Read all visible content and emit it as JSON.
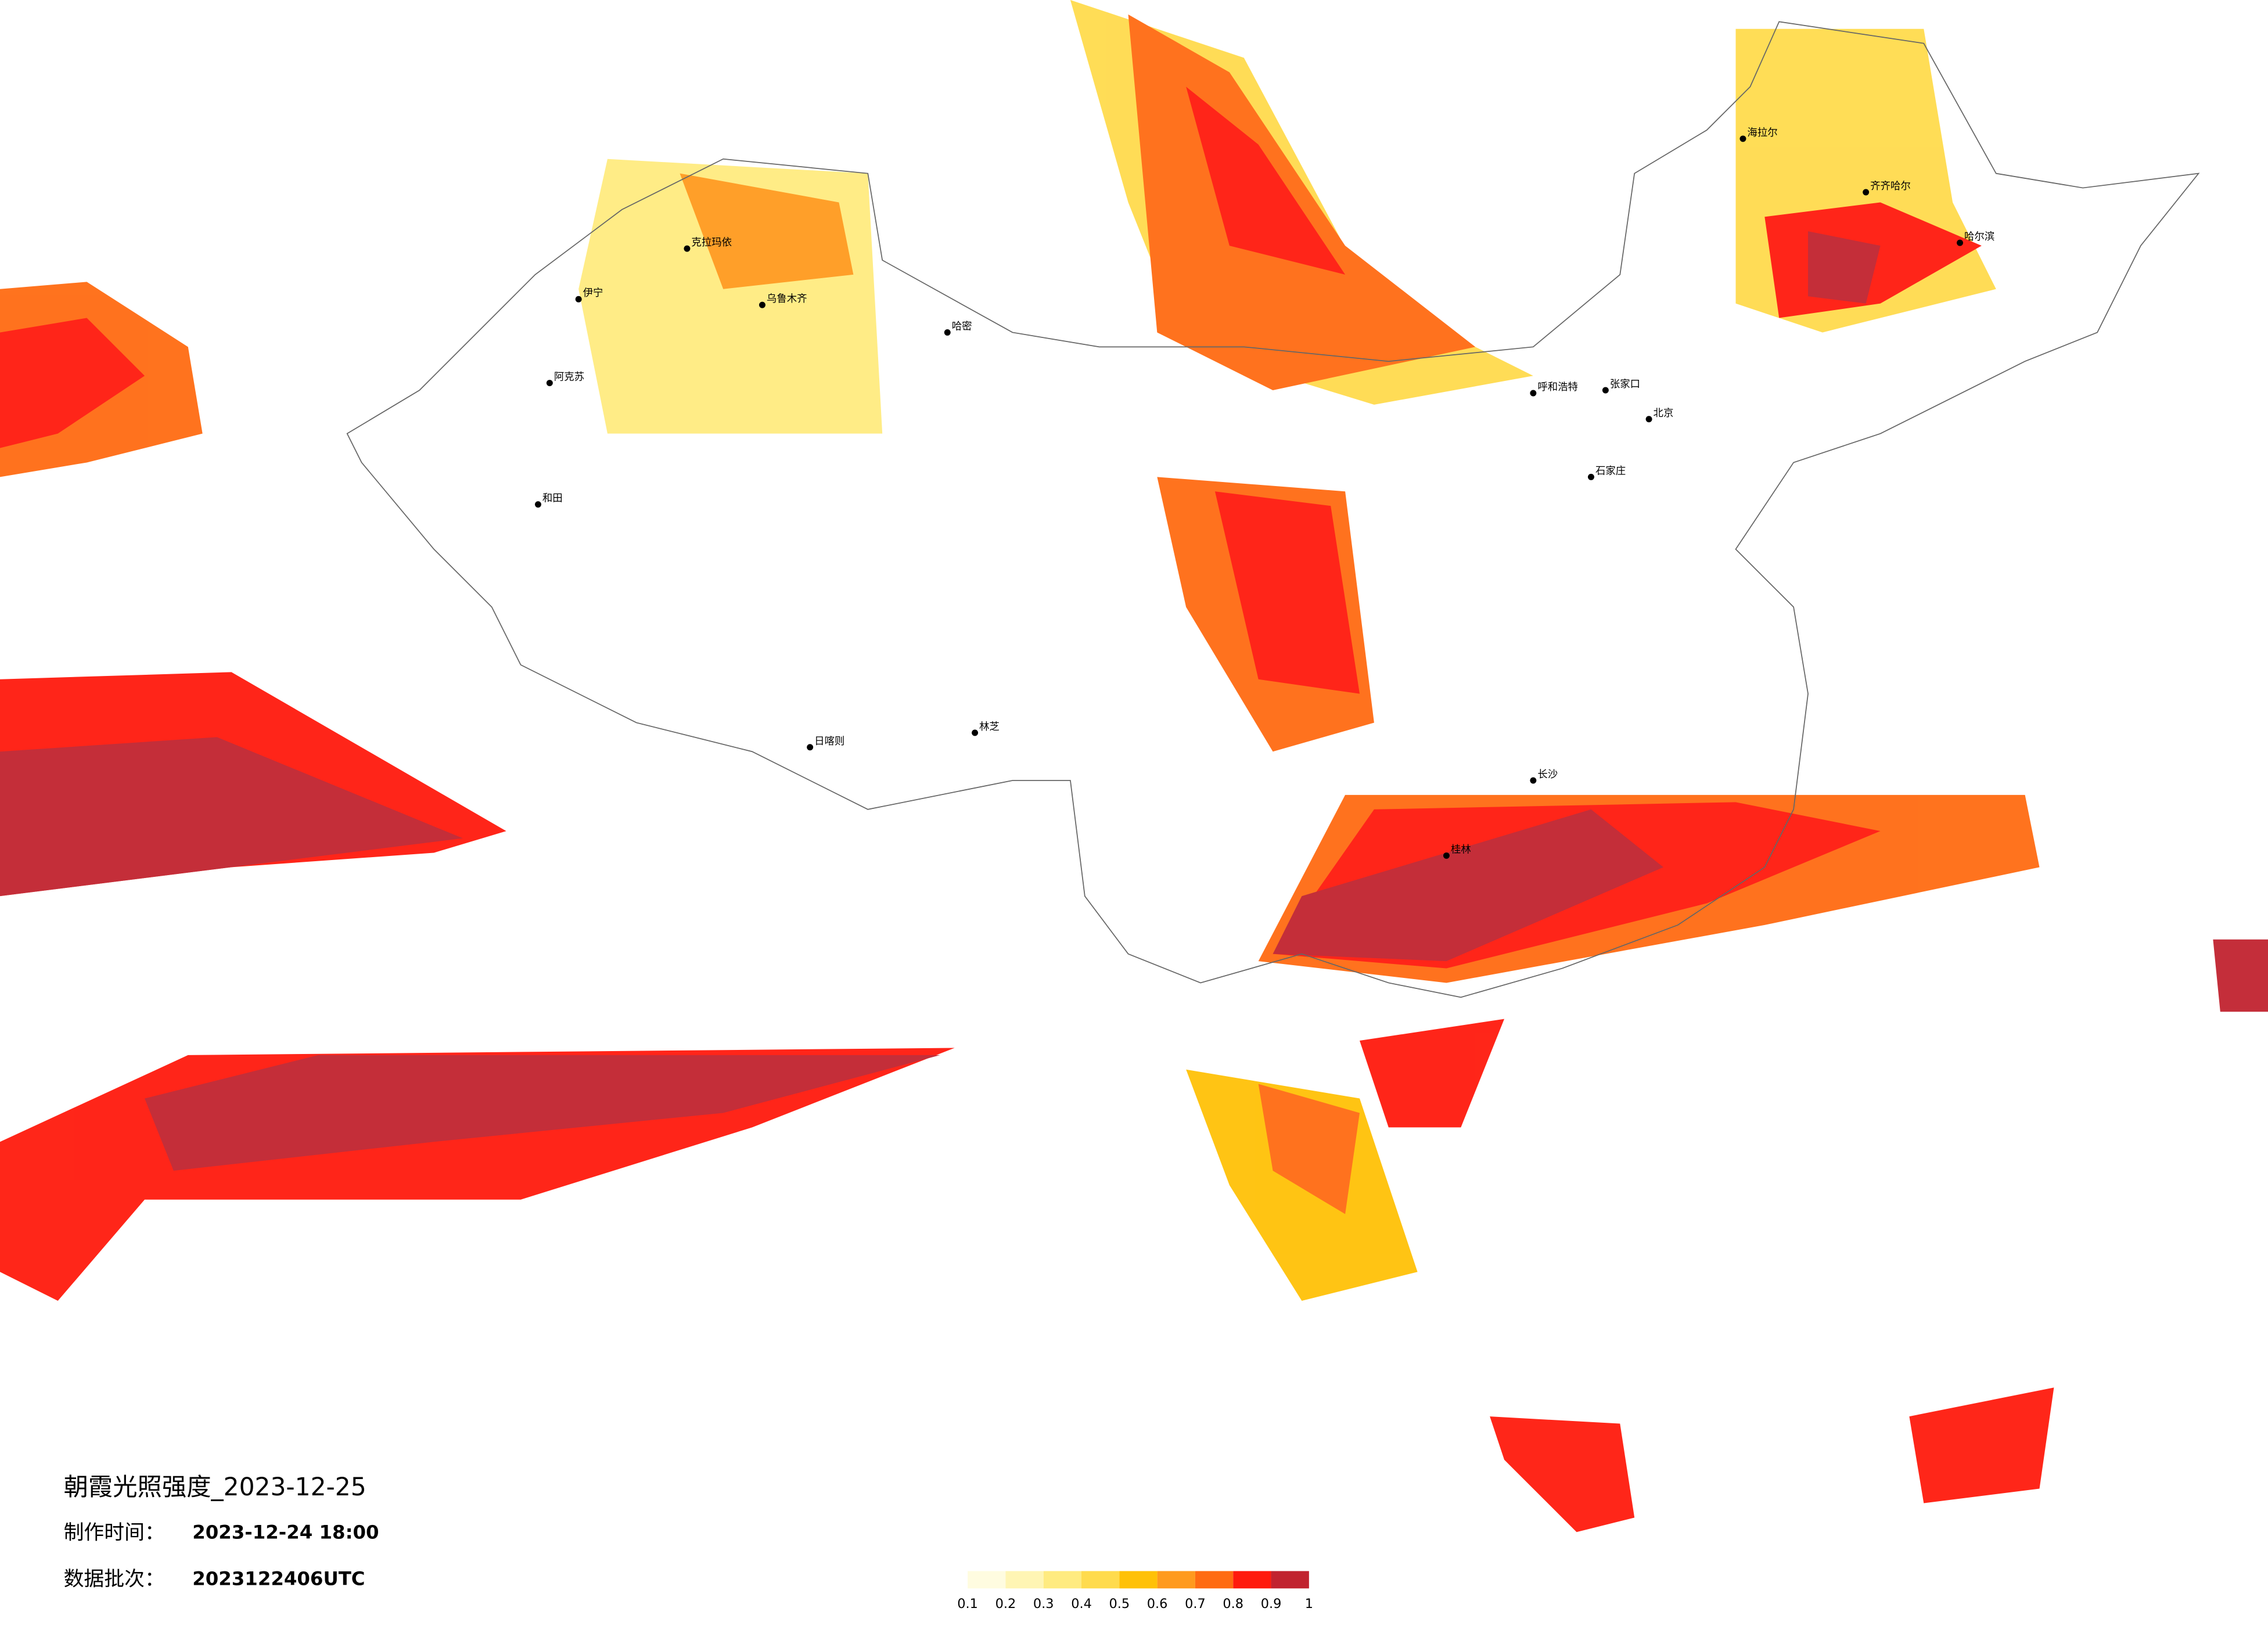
{
  "title": "朝霞光照强度_2023-12-25",
  "made_label": "制作时间：",
  "made_time": "2023-12-24 18:00",
  "batch_label": "数据批次：",
  "batch": "2023122406UTC",
  "legend": {
    "ticks": [
      0.1,
      0.2,
      0.3,
      0.4,
      0.5,
      0.6,
      0.7,
      0.8,
      0.9,
      1
    ],
    "colors": [
      "#fffce0",
      "#fff5b4",
      "#ffeb80",
      "#ffdb4d",
      "#ffc107",
      "#ff9a1e",
      "#ff6b12",
      "#ff1a0d",
      "#c1232f"
    ]
  },
  "cities": [
    "伊宁",
    "阿克苏",
    "克拉玛依",
    "乌鲁木齐",
    "哈密",
    "和田",
    "日喀则",
    "林芝",
    "海拉尔",
    "齐齐哈尔",
    "哈尔滨",
    "北京",
    "呼和浩特",
    "张家口",
    "石家庄",
    "长沙",
    "桂林"
  ]
}
